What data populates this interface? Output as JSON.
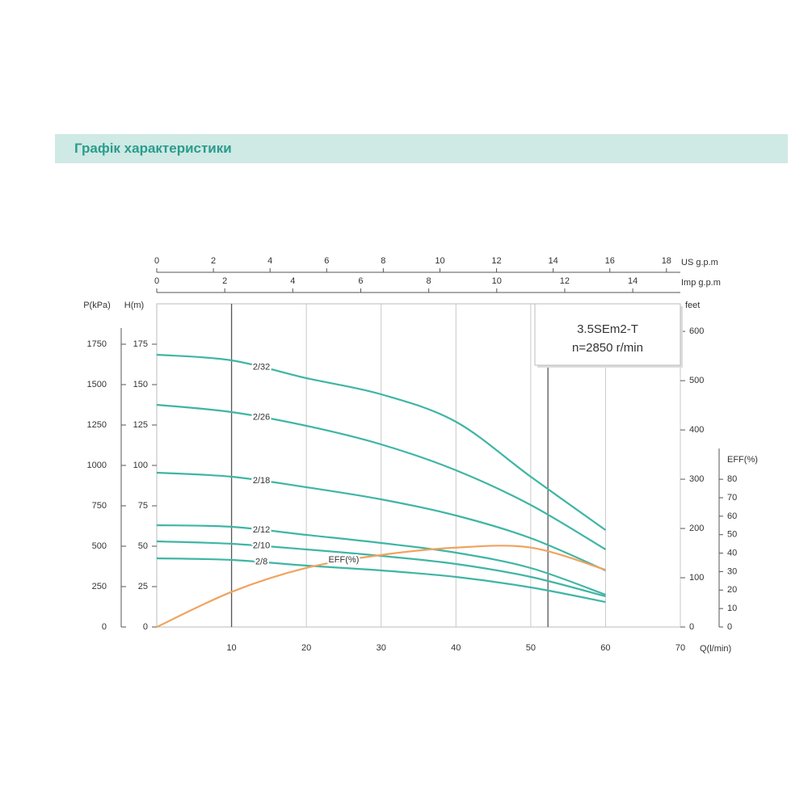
{
  "header": {
    "title": "Графік характеристики"
  },
  "chart_data": {
    "type": "line",
    "model_label": "3.5SEm2-T",
    "speed_label": "n=2850 r/min",
    "x_label": "Q(l/min)",
    "xlim": [
      0,
      70
    ],
    "xticks": [
      10,
      20,
      30,
      40,
      50,
      60,
      70
    ],
    "y_label": "H(m)",
    "ylim": [
      0,
      200
    ],
    "yticks": [
      0,
      25,
      50,
      75,
      100,
      125,
      150,
      175
    ],
    "grid": true,
    "x": [
      0,
      10,
      20,
      30,
      40,
      50,
      60
    ],
    "series": [
      {
        "name": "2/32",
        "color": "#3fb5a5",
        "values": [
          168.5,
          165,
          154,
          144,
          127,
          93,
          60
        ]
      },
      {
        "name": "2/26",
        "color": "#3fb5a5",
        "values": [
          137.5,
          133,
          124.5,
          113,
          97,
          75.5,
          48
        ]
      },
      {
        "name": "2/18",
        "color": "#3fb5a5",
        "values": [
          95.5,
          93,
          86.5,
          79,
          69,
          55,
          35
        ]
      },
      {
        "name": "2/12",
        "color": "#3fb5a5",
        "values": [
          63,
          62,
          57,
          52,
          46,
          36.5,
          20
        ]
      },
      {
        "name": "2/10",
        "color": "#3fb5a5",
        "values": [
          53,
          51.5,
          48,
          44,
          39,
          31,
          19
        ]
      },
      {
        "name": "2/8",
        "color": "#3fb5a5",
        "values": [
          42.5,
          41.5,
          38,
          35,
          31,
          24.5,
          15.5
        ]
      },
      {
        "name": "EFF(%)",
        "color": "#f0a35e",
        "axis": "y2",
        "values": [
          0,
          19,
          32,
          39,
          43,
          43,
          31
        ]
      }
    ],
    "y2_label": "EFF(%)",
    "y2lim": [
      0,
      175
    ],
    "y2ticks": [
      0,
      10,
      20,
      30,
      40,
      50,
      60,
      70,
      80
    ],
    "pressure_axis": {
      "label": "P(kPa)",
      "lim": [
        0,
        2000
      ],
      "ticks": [
        0,
        250,
        500,
        750,
        1000,
        1250,
        1500,
        1750
      ]
    },
    "feet_axis": {
      "label": "feet",
      "lim": [
        0,
        656
      ],
      "ticks": [
        0,
        100,
        200,
        300,
        400,
        500,
        600
      ]
    },
    "us_gpm_axis": {
      "label": "US  g.p.m",
      "lim": [
        0,
        18.49
      ],
      "ticks": [
        0,
        2,
        4,
        6,
        8,
        10,
        12,
        14,
        16,
        18
      ]
    },
    "imp_gpm_axis": {
      "label": "Imp  g.p.m",
      "lim": [
        0,
        15.4
      ],
      "ticks": [
        0,
        2,
        4,
        6,
        8,
        10,
        12,
        14
      ]
    },
    "range_marks": [
      10,
      52.3
    ]
  }
}
